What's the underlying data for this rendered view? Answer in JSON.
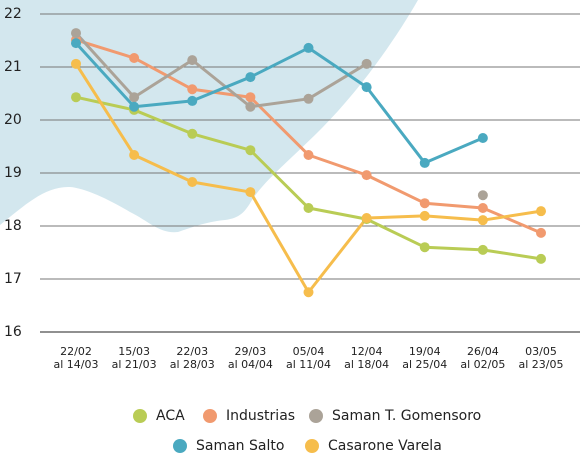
{
  "chart_data": {
    "type": "line",
    "categories": [
      [
        "22/02",
        "al 14/03"
      ],
      [
        "15/03",
        "al 21/03"
      ],
      [
        "22/03",
        "al 28/03"
      ],
      [
        "29/03",
        "al 04/04"
      ],
      [
        "05/04",
        "al 11/04"
      ],
      [
        "12/04",
        "al 18/04"
      ],
      [
        "19/04",
        "al 25/04"
      ],
      [
        "26/04",
        "al 02/05"
      ],
      [
        "03/05",
        "al 23/05"
      ]
    ],
    "series": [
      {
        "name": "ACA",
        "color": "#b9cc55",
        "values": [
          20.43,
          20.19,
          19.74,
          19.43,
          18.34,
          18.13,
          17.6,
          17.55,
          17.38
        ]
      },
      {
        "name": "Industrias",
        "color": "#f19a6f",
        "values": [
          21.51,
          21.17,
          20.58,
          20.43,
          19.34,
          18.96,
          18.43,
          18.34,
          17.87
        ]
      },
      {
        "name": "Saman T. Gomensoro",
        "color": "#aba398",
        "values": [
          21.64,
          20.43,
          21.13,
          20.25,
          20.4,
          21.06,
          null,
          18.58,
          null
        ]
      },
      {
        "name": "Saman Salto",
        "color": "#4aa9c0",
        "values": [
          21.45,
          20.25,
          20.36,
          20.81,
          21.36,
          20.62,
          19.19,
          19.66,
          null
        ]
      },
      {
        "name": "Casarone Varela",
        "color": "#f6bd4c",
        "values": [
          21.06,
          19.34,
          18.83,
          18.64,
          16.75,
          18.15,
          18.19,
          18.11,
          18.28
        ]
      }
    ],
    "ylim": [
      16,
      22
    ],
    "yticks": [
      16,
      17,
      18,
      19,
      20,
      21,
      22
    ],
    "grid": true
  }
}
